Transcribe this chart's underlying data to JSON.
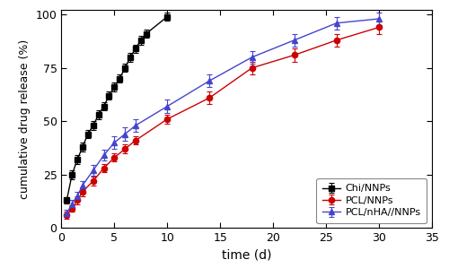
{
  "chi_x": [
    0.5,
    1,
    1.5,
    2,
    2.5,
    3,
    3.5,
    4,
    4.5,
    5,
    5.5,
    6,
    6.5,
    7,
    7.5,
    8,
    10
  ],
  "chi_y": [
    13,
    25,
    32,
    38,
    44,
    48,
    53,
    57,
    62,
    66,
    70,
    75,
    80,
    84,
    88,
    91,
    99
  ],
  "chi_yerr": [
    1.5,
    2,
    2,
    2,
    2,
    2,
    2,
    2,
    2,
    2,
    2,
    2,
    2,
    2,
    2,
    2,
    2
  ],
  "pcl_x": [
    0.5,
    1,
    1.5,
    2,
    3,
    4,
    5,
    6,
    7,
    10,
    14,
    18,
    22,
    26,
    30
  ],
  "pcl_y": [
    6,
    9,
    13,
    17,
    22,
    28,
    33,
    37,
    41,
    51,
    61,
    75,
    81,
    88,
    94
  ],
  "pcl_yerr": [
    1.5,
    1.5,
    2,
    2,
    2,
    2,
    2,
    2,
    2,
    2,
    3,
    3,
    3,
    3,
    3
  ],
  "pcl_nha_x": [
    0.5,
    1,
    1.5,
    2,
    3,
    4,
    5,
    6,
    7,
    10,
    14,
    18,
    22,
    26,
    30
  ],
  "pcl_nha_y": [
    7,
    11,
    15,
    20,
    27,
    34,
    40,
    44,
    48,
    57,
    69,
    80,
    88,
    96,
    98
  ],
  "pcl_nha_yerr": [
    1.5,
    2,
    2,
    2,
    2.5,
    2.5,
    3,
    3,
    3,
    3,
    3,
    3,
    3,
    3,
    3
  ],
  "chi_color": "#000000",
  "pcl_color": "#cc0000",
  "pcl_nha_color": "#4444cc",
  "bg_color": "#ffffff",
  "xlabel": "time (d)",
  "ylabel": "cumulative drug release (%)",
  "xlim": [
    0,
    35
  ],
  "ylim": [
    0,
    102
  ],
  "xticks": [
    0,
    5,
    10,
    15,
    20,
    25,
    30,
    35
  ],
  "yticks": [
    0,
    25,
    50,
    75,
    100
  ],
  "legend_labels": [
    "Chi/NNPs",
    "PCL/NNPs",
    "PCL/nHA//NNPs"
  ],
  "legend_loc": "lower right"
}
